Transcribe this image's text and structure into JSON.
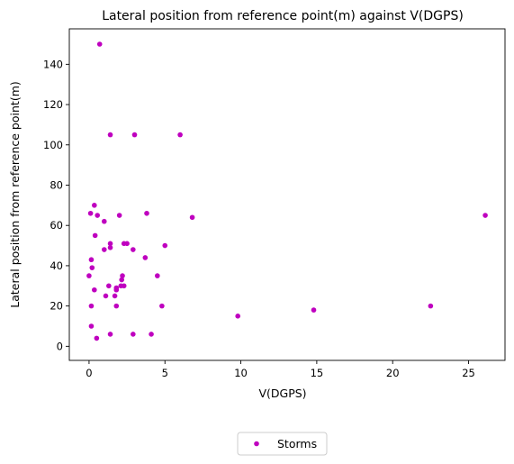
{
  "chart_data": {
    "type": "scatter",
    "title": "Lateral position from reference point(m) against V(DGPS)",
    "xlabel": "V(DGPS)",
    "ylabel": "Lateral position from reference point(m)",
    "xlim": [
      -1.3,
      27.4
    ],
    "ylim": [
      -7.0,
      157.6
    ],
    "xticks": [
      0,
      5,
      10,
      15,
      20,
      25
    ],
    "yticks": [
      0,
      20,
      40,
      60,
      80,
      100,
      120,
      140
    ],
    "grid": false,
    "legend_position": "bottom-center-outside",
    "series": [
      {
        "name": "Storms",
        "color": "#bf00bf",
        "marker": "circle",
        "points": [
          [
            0.7,
            150
          ],
          [
            1.4,
            105
          ],
          [
            3.0,
            105
          ],
          [
            6.0,
            105
          ],
          [
            0.35,
            70
          ],
          [
            0.1,
            66
          ],
          [
            0.55,
            65
          ],
          [
            2.0,
            65
          ],
          [
            3.8,
            66
          ],
          [
            6.8,
            64
          ],
          [
            26.1,
            65
          ],
          [
            1.0,
            62
          ],
          [
            0.4,
            55
          ],
          [
            1.4,
            51
          ],
          [
            1.4,
            49
          ],
          [
            2.3,
            51
          ],
          [
            2.5,
            51
          ],
          [
            1.0,
            48
          ],
          [
            2.9,
            48
          ],
          [
            5.0,
            50
          ],
          [
            3.7,
            44
          ],
          [
            0.15,
            43
          ],
          [
            0.2,
            39
          ],
          [
            0.0,
            35
          ],
          [
            4.5,
            35
          ],
          [
            2.2,
            35
          ],
          [
            2.15,
            33
          ],
          [
            2.1,
            30
          ],
          [
            2.3,
            30
          ],
          [
            1.3,
            30
          ],
          [
            1.8,
            29
          ],
          [
            1.8,
            28
          ],
          [
            0.35,
            28
          ],
          [
            1.1,
            25
          ],
          [
            1.7,
            25
          ],
          [
            0.15,
            20
          ],
          [
            1.8,
            20
          ],
          [
            4.8,
            20
          ],
          [
            22.5,
            20
          ],
          [
            14.8,
            18
          ],
          [
            9.8,
            15
          ],
          [
            0.15,
            10
          ],
          [
            1.4,
            6
          ],
          [
            2.9,
            6
          ],
          [
            4.1,
            6
          ],
          [
            0.5,
            4
          ]
        ]
      }
    ]
  }
}
